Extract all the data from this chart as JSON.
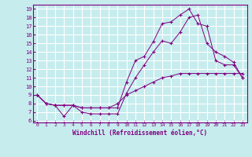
{
  "xlabel": "Windchill (Refroidissement éolien,°C)",
  "bg_color": "#c6ecee",
  "grid_color": "#ffffff",
  "line_color": "#800080",
  "xlim": [
    -0.5,
    23.5
  ],
  "ylim": [
    5.8,
    19.5
  ],
  "xticks": [
    0,
    1,
    2,
    3,
    4,
    5,
    6,
    7,
    8,
    9,
    10,
    11,
    12,
    13,
    14,
    15,
    16,
    17,
    18,
    19,
    20,
    21,
    22,
    23
  ],
  "yticks": [
    6,
    7,
    8,
    9,
    10,
    11,
    12,
    13,
    14,
    15,
    16,
    17,
    18,
    19
  ],
  "line1_x": [
    0,
    1,
    2,
    3,
    4,
    5,
    6,
    7,
    8,
    9,
    10,
    11,
    12,
    13,
    14,
    15,
    16,
    17,
    18,
    19,
    20,
    21,
    22,
    23
  ],
  "line1_y": [
    9,
    8,
    7.8,
    7.8,
    7.8,
    7.5,
    7.5,
    7.5,
    7.5,
    8.0,
    9.0,
    9.5,
    10.0,
    10.5,
    11.0,
    11.2,
    11.5,
    11.5,
    11.5,
    11.5,
    11.5,
    11.5,
    11.5,
    11.5
  ],
  "line2_x": [
    0,
    1,
    2,
    3,
    4,
    5,
    6,
    7,
    8,
    9,
    10,
    11,
    12,
    13,
    14,
    15,
    16,
    17,
    18,
    19,
    20,
    21,
    22,
    23
  ],
  "line2_y": [
    9,
    8,
    7.8,
    6.5,
    7.8,
    7.0,
    6.8,
    6.8,
    6.8,
    6.8,
    9.2,
    11.0,
    12.5,
    14.0,
    15.3,
    15.0,
    16.3,
    18.0,
    18.3,
    15.0,
    14.0,
    13.5,
    12.8,
    11.0
  ],
  "line3_x": [
    0,
    1,
    2,
    3,
    4,
    5,
    6,
    7,
    8,
    9,
    10,
    11,
    12,
    13,
    14,
    15,
    16,
    17,
    18,
    19,
    20,
    21,
    22,
    23
  ],
  "line3_y": [
    9,
    8,
    7.8,
    7.8,
    7.8,
    7.5,
    7.5,
    7.5,
    7.5,
    7.5,
    10.5,
    13.0,
    13.5,
    15.2,
    17.3,
    17.5,
    18.3,
    19.0,
    17.3,
    17.0,
    13.0,
    12.5,
    12.5,
    11.0
  ]
}
